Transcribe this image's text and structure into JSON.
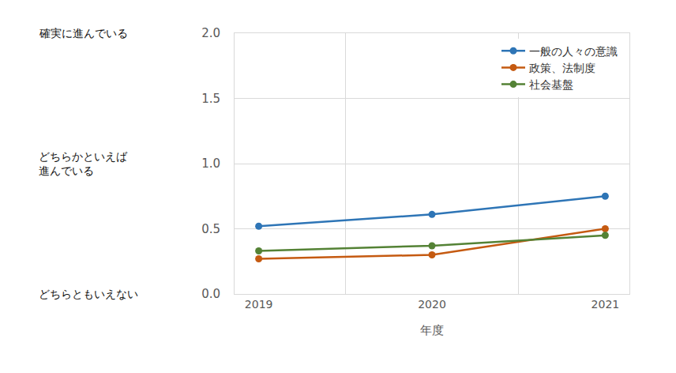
{
  "chart_data": {
    "type": "line",
    "x_label": "年度",
    "categories": [
      "2019",
      "2020",
      "2021"
    ],
    "series": [
      {
        "name": "一般の人々の意識",
        "color": "#2e75b6",
        "marker": "circle",
        "values": [
          0.52,
          0.61,
          0.75
        ]
      },
      {
        "name": "政策、法制度",
        "color": "#c55a11",
        "marker": "circle",
        "values": [
          0.27,
          0.3,
          0.5
        ]
      },
      {
        "name": "社会基盤",
        "color": "#548235",
        "marker": "circle",
        "values": [
          0.33,
          0.37,
          0.45
        ]
      }
    ],
    "ylim": [
      0,
      2
    ],
    "yticks": [
      {
        "value": 0,
        "label": "0.0"
      },
      {
        "value": 0.5,
        "label": "0.5"
      },
      {
        "value": 1,
        "label": "1.0"
      },
      {
        "value": 1.5,
        "label": "1.5"
      },
      {
        "value": 2,
        "label": "2.0"
      }
    ],
    "annotations": [
      {
        "value": 2,
        "text": "確実に進んでいる"
      },
      {
        "value": 1,
        "text": "どちらかといえば\n進んでいる"
      },
      {
        "value": 0,
        "text": "どちらともいえない"
      }
    ],
    "grid": true,
    "legend": "upper right"
  }
}
